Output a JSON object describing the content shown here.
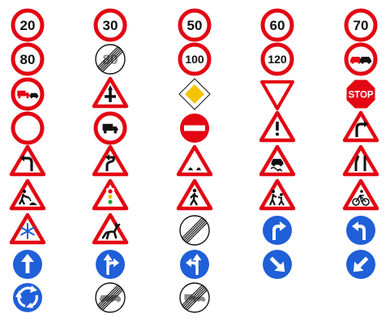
{
  "colors": {
    "red": "#e30613",
    "blue": "#1f5fd8",
    "yellow": "#f5c400",
    "black": "#111111",
    "white": "#ffffff",
    "gray": "#8a8a8a"
  },
  "signs": [
    {
      "type": "limit",
      "text": "20"
    },
    {
      "type": "limit",
      "text": "30"
    },
    {
      "type": "limit",
      "text": "50"
    },
    {
      "type": "limit",
      "text": "60"
    },
    {
      "type": "limit",
      "text": "70"
    },
    {
      "type": "limit",
      "text": "80"
    },
    {
      "type": "end-limit",
      "text": "80"
    },
    {
      "type": "limit",
      "text": "100"
    },
    {
      "type": "limit",
      "text": "120"
    },
    {
      "type": "no-overtaking-icon"
    },
    {
      "type": "no-overtaking-trucks-icon"
    },
    {
      "type": "warn",
      "icon": "crossroads"
    },
    {
      "type": "priority-road-icon"
    },
    {
      "type": "yield-icon"
    },
    {
      "type": "stop",
      "text": "STOP"
    },
    {
      "type": "no-vehicles-icon"
    },
    {
      "type": "no-trucks-icon"
    },
    {
      "type": "no-entry-icon"
    },
    {
      "type": "warn",
      "icon": "danger"
    },
    {
      "type": "warn",
      "icon": "curve-right"
    },
    {
      "type": "warn",
      "icon": "curve-left"
    },
    {
      "type": "warn",
      "icon": "double-curve"
    },
    {
      "type": "warn",
      "icon": "bumpy-road"
    },
    {
      "type": "warn",
      "icon": "slippery-road"
    },
    {
      "type": "warn",
      "icon": "road-narrows"
    },
    {
      "type": "warn",
      "icon": "roadworks"
    },
    {
      "type": "warn",
      "icon": "traffic-lights"
    },
    {
      "type": "warn",
      "icon": "pedestrians"
    },
    {
      "type": "warn",
      "icon": "children"
    },
    {
      "type": "warn",
      "icon": "cyclists"
    },
    {
      "type": "warn",
      "icon": "ice-snow"
    },
    {
      "type": "warn",
      "icon": "deer"
    },
    {
      "type": "end-all-restrictions-icon"
    },
    {
      "type": "turn-right-ahead-icon"
    },
    {
      "type": "turn-left-ahead-icon"
    },
    {
      "type": "straight-ahead-icon"
    },
    {
      "type": "straight-or-right-icon"
    },
    {
      "type": "straight-or-left-icon"
    },
    {
      "type": "keep-right-icon"
    },
    {
      "type": "keep-left-icon"
    },
    {
      "type": "roundabout-icon"
    },
    {
      "type": "end-no-overtaking-icon"
    },
    {
      "type": "end-no-overtaking-trucks-icon"
    }
  ]
}
